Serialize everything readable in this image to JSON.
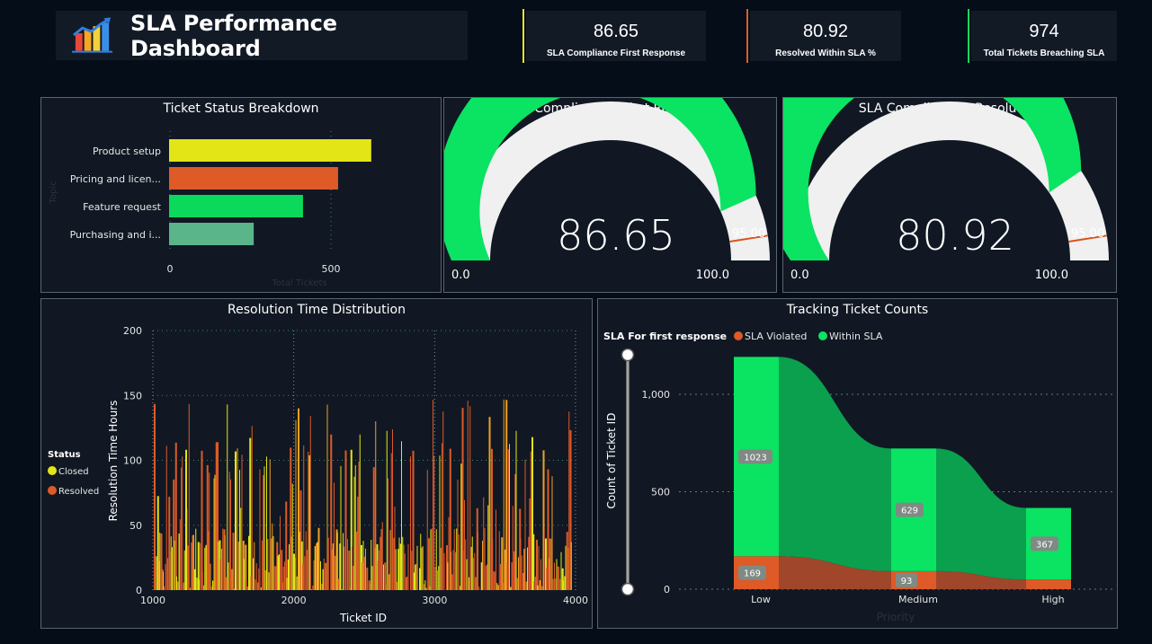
{
  "header": {
    "title": "SLA Performance Dashboard",
    "logo_icon": "bar-chart-growth-icon"
  },
  "kpis": [
    {
      "value": "86.65",
      "label": "SLA Compliance First Response",
      "accent": "#e2e51e"
    },
    {
      "value": "80.92",
      "label": "Resolved Within SLA %",
      "accent": "#e05a2b"
    },
    {
      "value": "974",
      "label": "Total Tickets Breaching SLA",
      "accent": "#14d85d"
    }
  ],
  "colors": {
    "yellow": "#e3e516",
    "orange": "#de5a27",
    "green": "#0be362",
    "teal": "#5ab58a",
    "gauge_track": "#f0f0f0",
    "target": "#d9531e",
    "panel_bg": "#111823",
    "page_bg": "#050d18"
  },
  "panels": {
    "ticket_status": {
      "title": "Ticket Status Breakdown"
    },
    "gauge_first": {
      "title": "SLA Compliance – First Response"
    },
    "gauge_resolution": {
      "title": "SLA Compliance – Resolution"
    },
    "resolution_dist": {
      "title": "Resolution Time Distribution"
    },
    "tracking": {
      "title": "Tracking Ticket Counts"
    }
  },
  "chart_data": [
    {
      "id": "ticket_status",
      "type": "bar",
      "orientation": "horizontal",
      "title": "Ticket Status Breakdown",
      "categories": [
        "Product setup",
        "Pricing and licen...",
        "Feature request",
        "Purchasing and i..."
      ],
      "values": [
        628,
        525,
        416,
        263
      ],
      "colors": [
        "#e3e516",
        "#de5a27",
        "#0bd95c",
        "#5ab58a"
      ],
      "xlabel": "Total Tickets",
      "ylabel": "Topic",
      "xticks": [
        "0",
        "500"
      ],
      "xlim": [
        0,
        720
      ],
      "grid": "vertical-dotted"
    },
    {
      "id": "gauge_first",
      "type": "gauge",
      "title": "SLA Compliance – First Response",
      "value": 86.65,
      "value_label": "86.65",
      "min": 0,
      "max": 100,
      "min_label": "0.0",
      "max_label": "100.0",
      "target": 95,
      "target_label": "95.00"
    },
    {
      "id": "gauge_resolution",
      "type": "gauge",
      "title": "SLA Compliance – Resolution",
      "value": 80.92,
      "value_label": "80.92",
      "min": 0,
      "max": 100,
      "min_label": "0.0",
      "max_label": "100.0",
      "target": 95,
      "target_label": "95.00"
    },
    {
      "id": "resolution_dist",
      "type": "bar",
      "title": "Resolution Time Distribution",
      "xlabel": "Ticket ID",
      "ylabel": "Resolution Time Hours",
      "xlim": [
        1000,
        4000
      ],
      "ylim": [
        0,
        200
      ],
      "xticks": [
        "1000",
        "2000",
        "3000",
        "4000"
      ],
      "yticks": [
        "0",
        "50",
        "100",
        "150",
        "200"
      ],
      "legend": {
        "title": "Status",
        "position": "left",
        "items": [
          {
            "name": "Closed",
            "color": "#e3e516"
          },
          {
            "name": "Resolved",
            "color": "#de5a27"
          }
        ]
      },
      "series_summary": {
        "description": "dense per-ticket bars, values roughly 0-148 hours, mostly below 50",
        "max_value": 148,
        "typical_max": 48
      }
    },
    {
      "id": "tracking",
      "type": "ribbon",
      "title": "Tracking Ticket Counts",
      "legend_title": "SLA For first response",
      "legend": [
        {
          "name": "SLA Violated",
          "color": "#de5a27"
        },
        {
          "name": "Within SLA",
          "color": "#0be362"
        }
      ],
      "categories": [
        "Low",
        "Medium",
        "High"
      ],
      "series": [
        {
          "name": "SLA Violated",
          "values": [
            169,
            93,
            50
          ],
          "labels": [
            "169",
            "93",
            ""
          ]
        },
        {
          "name": "Within SLA",
          "values": [
            1023,
            629,
            367
          ],
          "labels": [
            "1023",
            "629",
            "367"
          ]
        }
      ],
      "xlabel": "Priority",
      "ylabel": "Count of Ticket ID",
      "yticks": [
        "0",
        "500",
        "1,000"
      ],
      "ylim": [
        0,
        1250
      ]
    }
  ]
}
